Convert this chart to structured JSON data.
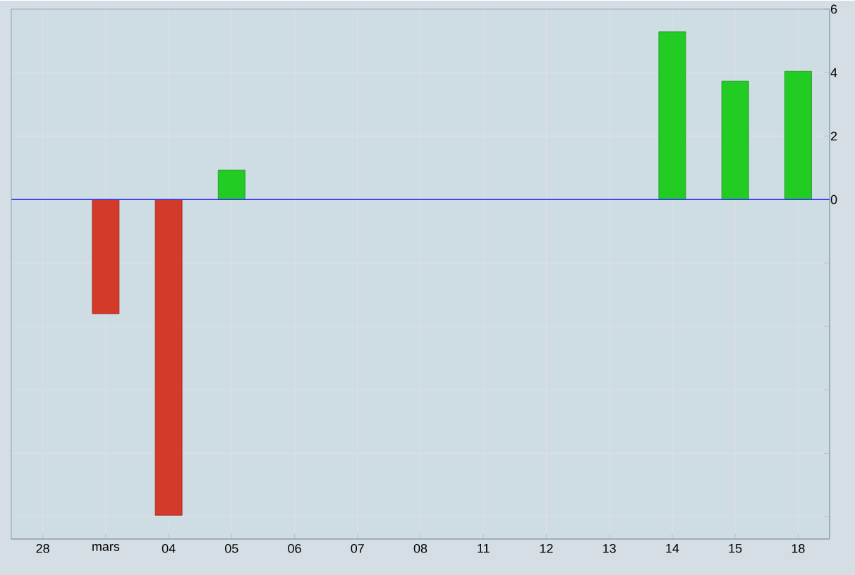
{
  "chart_data": {
    "type": "bar",
    "categories": [
      "28",
      "mars",
      "04",
      "05",
      "06",
      "07",
      "08",
      "11",
      "12",
      "13",
      "14",
      "15",
      "18"
    ],
    "values": [
      null,
      -3.6,
      -9.95,
      0.93,
      null,
      null,
      null,
      null,
      null,
      null,
      5.29,
      3.73,
      4.04
    ],
    "colors": [
      "#d33a2a",
      "#d33a2a",
      "#d33a2a",
      "#22cc22",
      "#22cc22",
      "#22cc22",
      "#22cc22",
      "#22cc22",
      "#22cc22",
      "#22cc22",
      "#22cc22",
      "#22cc22",
      "#22cc22"
    ],
    "ylim": [
      -10.7,
      6
    ],
    "yticks": [
      {
        "value": -10,
        "label": null
      },
      {
        "value": -8,
        "label": null
      },
      {
        "value": -6,
        "label": null
      },
      {
        "value": -4,
        "label": null
      },
      {
        "value": -2,
        "label": null
      },
      0,
      2,
      4,
      6
    ],
    "ref_lines": [
      {
        "axis": "y",
        "value": 0,
        "color": "#3333ff"
      }
    ],
    "grid": true
  }
}
